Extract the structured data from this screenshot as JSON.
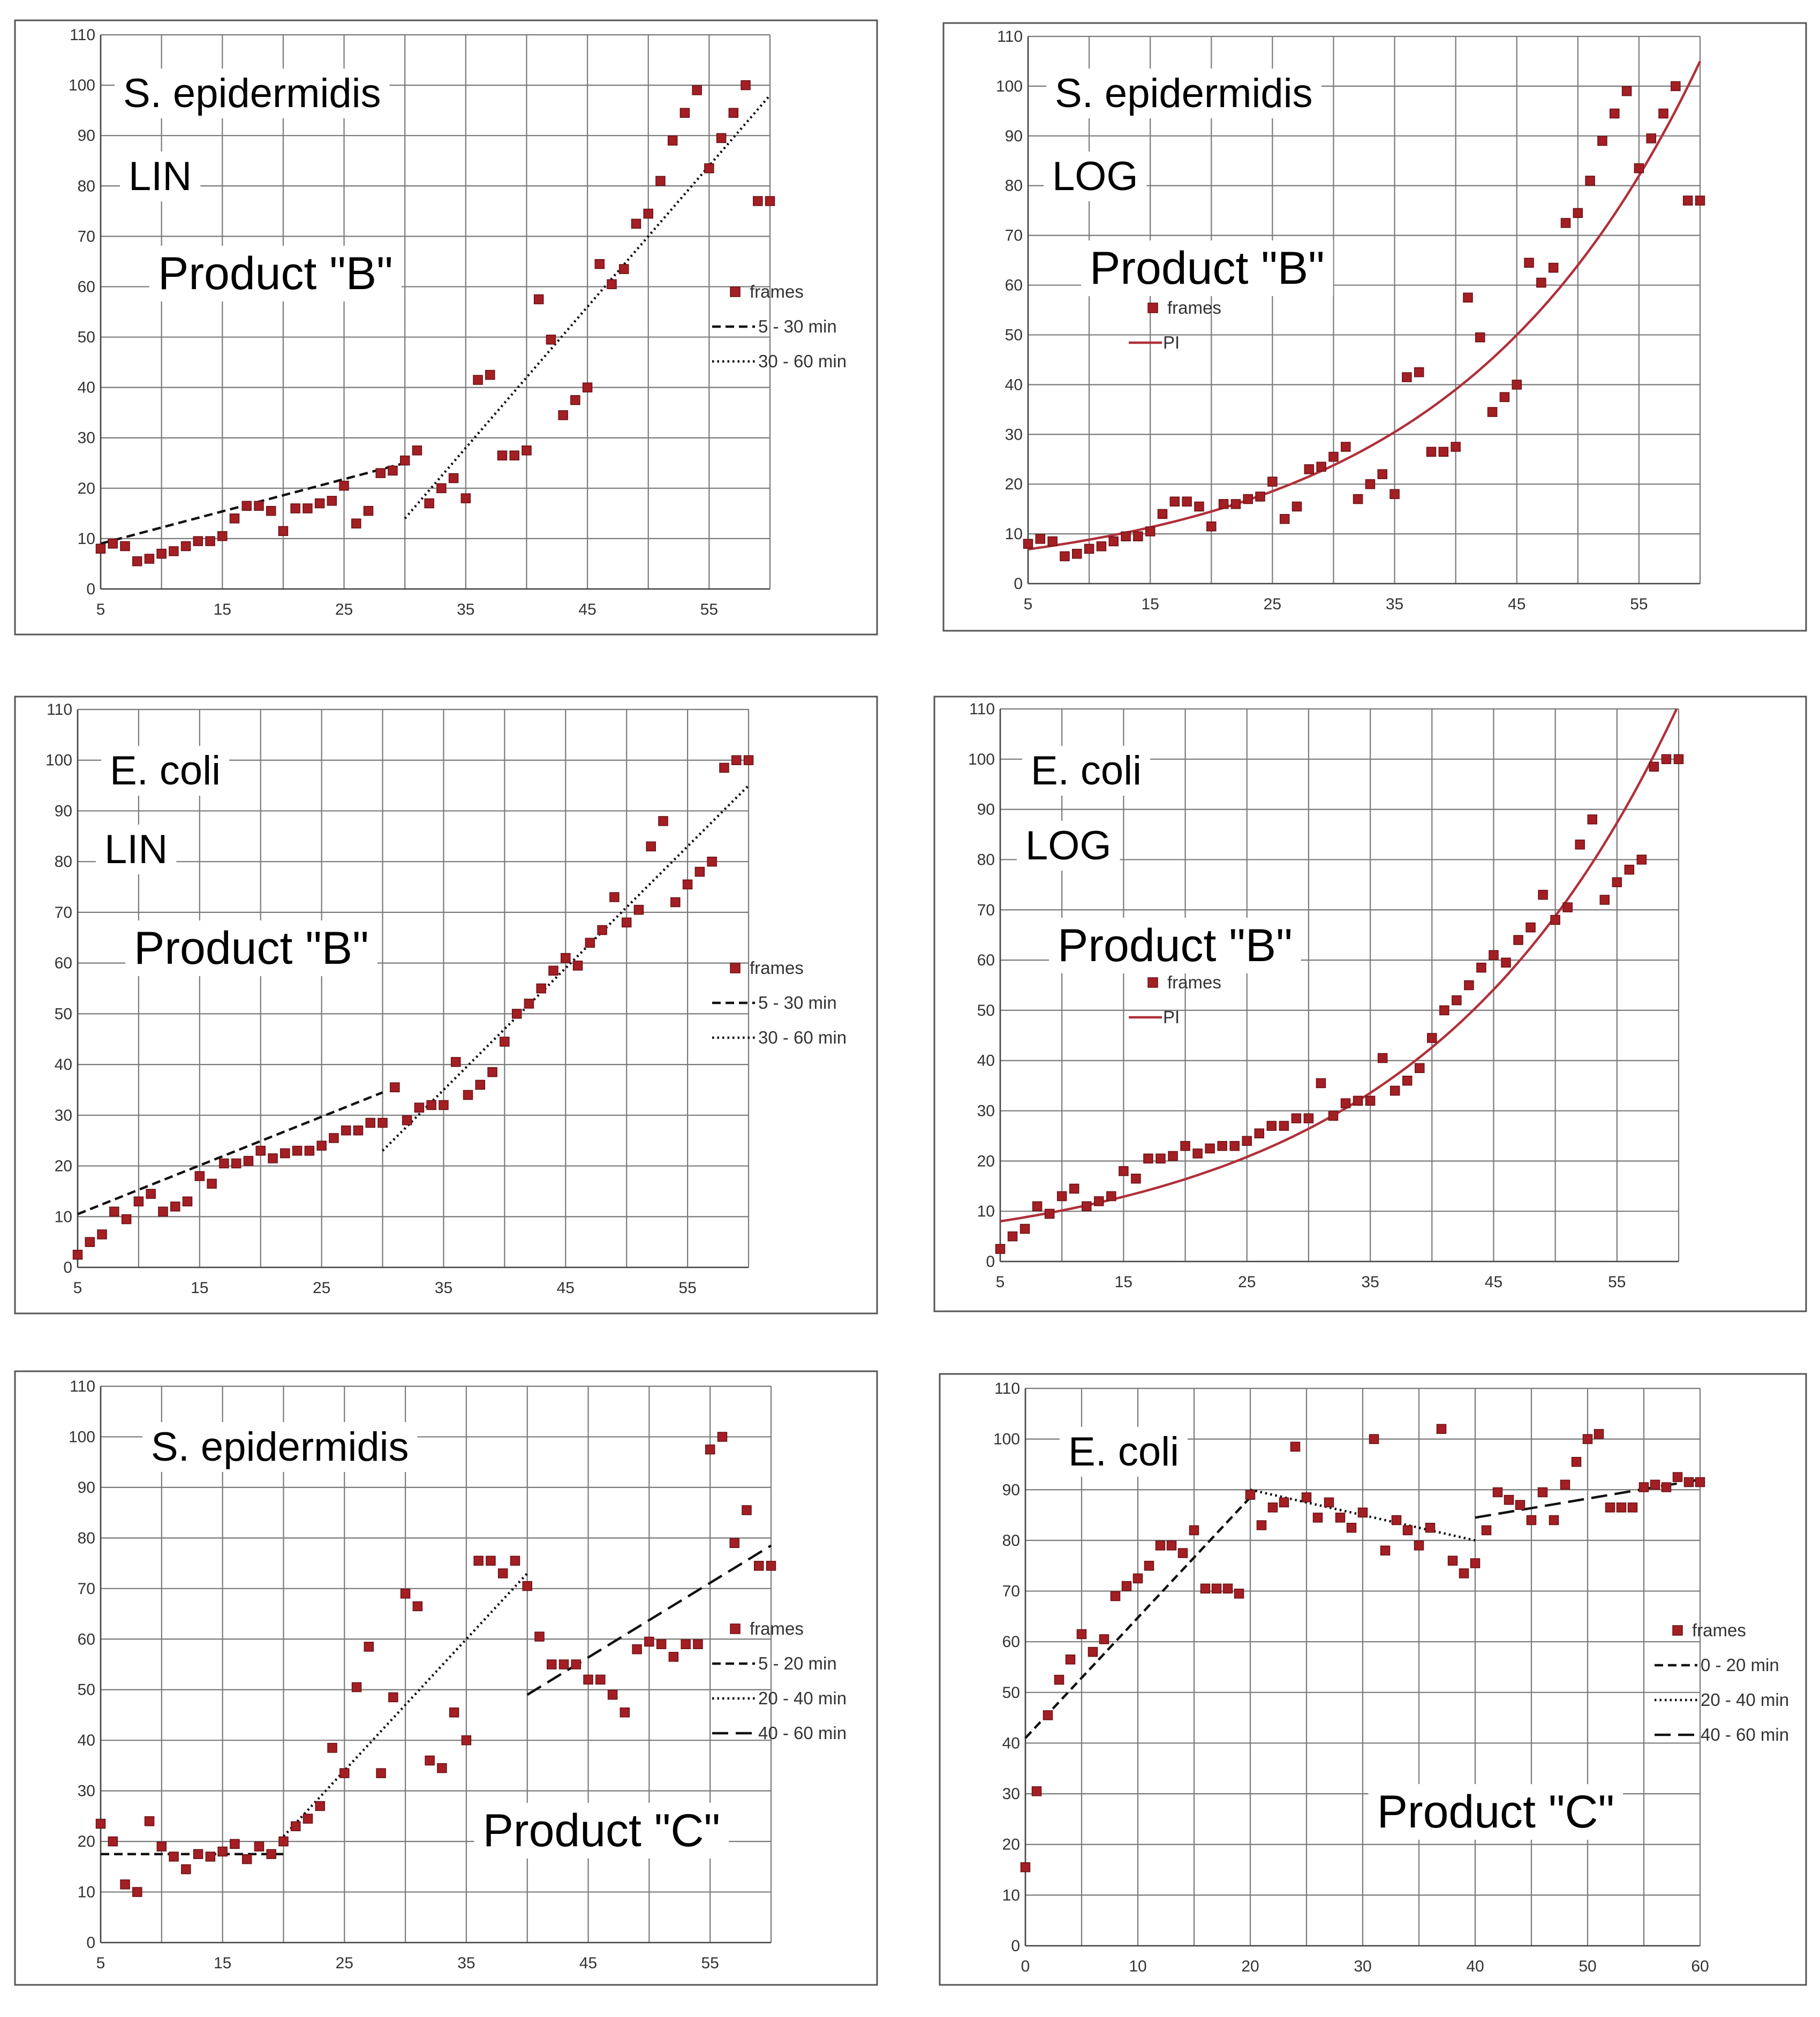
{
  "figure": {
    "panels": [
      {
        "id": "a",
        "title": "S. epidermidis",
        "mode": "LIN",
        "product": "Product \"B\"",
        "legend": [
          {
            "label": "frames",
            "style": "marker"
          },
          {
            "label": "5 - 30 min",
            "style": "dash"
          },
          {
            "label": "30 - 60 min",
            "style": "dot"
          }
        ]
      },
      {
        "id": "b",
        "title": "S. epidermidis",
        "mode": "LOG",
        "product": "Product \"B\"",
        "legend": [
          {
            "label": "frames",
            "style": "marker"
          },
          {
            "label": "PI",
            "style": "line"
          }
        ]
      },
      {
        "id": "c",
        "title": "E. coli",
        "mode": "LIN",
        "product": "Product \"B\"",
        "legend": [
          {
            "label": "frames",
            "style": "marker"
          },
          {
            "label": "5 - 30 min",
            "style": "dash"
          },
          {
            "label": "30 - 60 min",
            "style": "dot"
          }
        ]
      },
      {
        "id": "d",
        "title": "E. coli",
        "mode": "LOG",
        "product": "Product \"B\"",
        "legend": [
          {
            "label": "frames",
            "style": "marker"
          },
          {
            "label": "PI",
            "style": "line"
          }
        ]
      },
      {
        "id": "e",
        "title": "S. epidermidis",
        "mode": "",
        "product": "Product \"C\"",
        "legend": [
          {
            "label": "frames",
            "style": "marker"
          },
          {
            "label": "5 - 20 min",
            "style": "dash"
          },
          {
            "label": "20 - 40 min",
            "style": "dot"
          },
          {
            "label": "40 - 60 min",
            "style": "longdash"
          }
        ]
      },
      {
        "id": "f",
        "title": "E. coli",
        "mode": "",
        "product": "Product \"C\"",
        "legend": [
          {
            "label": "frames",
            "style": "marker"
          },
          {
            "label": "0 - 20 min",
            "style": "dash"
          },
          {
            "label": "20 - 40 min",
            "style": "dot"
          },
          {
            "label": "40 - 60 min",
            "style": "longdash"
          }
        ]
      }
    ]
  },
  "colors": {
    "marker": "#a31f24",
    "marker_edge": "#6a1015",
    "pi_line": "#b0303a",
    "fit_line": "#111111",
    "grid": "#7a7a7a",
    "frame": "#555555"
  },
  "chart_data": [
    {
      "panel": "a",
      "type": "scatter",
      "x": [
        5,
        6,
        7,
        8,
        9,
        10,
        11,
        12,
        13,
        14,
        15,
        16,
        17,
        18,
        19,
        20,
        21,
        22,
        23,
        24,
        25,
        26,
        27,
        28,
        29,
        30,
        31,
        32,
        33,
        34,
        35,
        36,
        37,
        38,
        39,
        40,
        41,
        42,
        43,
        44,
        45,
        46,
        47,
        48,
        49,
        50,
        51,
        52,
        53,
        54,
        55,
        56,
        57,
        58,
        59,
        60
      ],
      "values": [
        8,
        9,
        8.5,
        5.5,
        6,
        7,
        7.5,
        8.5,
        9.5,
        9.5,
        10.5,
        14,
        16.5,
        16.5,
        15.5,
        11.5,
        16,
        16,
        17,
        17.5,
        20.5,
        13,
        15.5,
        23,
        23.5,
        25.5,
        27.5,
        17,
        20,
        22,
        18,
        41.5,
        42.5,
        26.5,
        26.5,
        27.5,
        57.5,
        49.5,
        34.5,
        37.5,
        40,
        64.5,
        60.5,
        63.5,
        72.5,
        74.5,
        81,
        89,
        94.5,
        99,
        83.5,
        89.5,
        94.5,
        100,
        77,
        77
      ],
      "fits": [
        {
          "label": "5 - 30 min",
          "style": "dash",
          "from": [
            5,
            9
          ],
          "to": [
            30,
            25
          ]
        },
        {
          "label": "30 - 60 min",
          "style": "dot",
          "from": [
            30,
            14
          ],
          "to": [
            60,
            98
          ]
        }
      ],
      "xlim": [
        5,
        60
      ],
      "ylim": [
        0,
        110
      ],
      "xticks": [
        5,
        15,
        25,
        35,
        45,
        55
      ],
      "yticks": [
        0,
        10,
        20,
        30,
        40,
        50,
        60,
        70,
        80,
        90,
        100,
        110
      ]
    },
    {
      "panel": "b",
      "type": "scatter",
      "x": [
        5,
        6,
        7,
        8,
        9,
        10,
        11,
        12,
        13,
        14,
        15,
        16,
        17,
        18,
        19,
        20,
        21,
        22,
        23,
        24,
        25,
        26,
        27,
        28,
        29,
        30,
        31,
        32,
        33,
        34,
        35,
        36,
        37,
        38,
        39,
        40,
        41,
        42,
        43,
        44,
        45,
        46,
        47,
        48,
        49,
        50,
        51,
        52,
        53,
        54,
        55,
        56,
        57,
        58,
        59,
        60
      ],
      "values": [
        8,
        9,
        8.5,
        5.5,
        6,
        7,
        7.5,
        8.5,
        9.5,
        9.5,
        10.5,
        14,
        16.5,
        16.5,
        15.5,
        11.5,
        16,
        16,
        17,
        17.5,
        20.5,
        13,
        15.5,
        23,
        23.5,
        25.5,
        27.5,
        17,
        20,
        22,
        18,
        41.5,
        42.5,
        26.5,
        26.5,
        27.5,
        57.5,
        49.5,
        34.5,
        37.5,
        40,
        64.5,
        60.5,
        63.5,
        72.5,
        74.5,
        81,
        89,
        94.5,
        99,
        83.5,
        89.5,
        94.5,
        100,
        77,
        77
      ],
      "curve": {
        "label": "PI",
        "model": "exponential",
        "a": 6.9,
        "k": 0.0495,
        "x0": 5
      },
      "xlim": [
        5,
        60
      ],
      "ylim": [
        0,
        110
      ],
      "xticks": [
        5,
        15,
        25,
        35,
        45,
        55
      ],
      "yticks": [
        0,
        10,
        20,
        30,
        40,
        50,
        60,
        70,
        80,
        90,
        100,
        110
      ]
    },
    {
      "panel": "c",
      "type": "scatter",
      "x": [
        5,
        6,
        7,
        8,
        9,
        10,
        11,
        12,
        13,
        14,
        15,
        16,
        17,
        18,
        19,
        20,
        21,
        22,
        23,
        24,
        25,
        26,
        27,
        28,
        29,
        30,
        31,
        32,
        33,
        34,
        35,
        36,
        37,
        38,
        39,
        40,
        41,
        42,
        43,
        44,
        45,
        46,
        47,
        48,
        49,
        50,
        51,
        52,
        53,
        54,
        55,
        56,
        57,
        58,
        59,
        60
      ],
      "values": [
        2.5,
        5,
        6.5,
        11,
        9.5,
        13,
        14.5,
        11,
        12,
        13,
        18,
        16.5,
        20.5,
        20.5,
        21,
        23,
        21.5,
        22.5,
        23,
        23,
        24,
        25.5,
        27,
        27,
        28.5,
        28.5,
        35.5,
        29,
        31.5,
        32,
        32,
        40.5,
        34,
        36,
        38.5,
        44.5,
        50,
        52,
        55,
        58.5,
        61,
        59.5,
        64,
        66.5,
        73,
        68,
        70.5,
        83,
        88,
        72,
        75.5,
        78,
        80,
        98.5,
        100,
        100
      ],
      "fits": [
        {
          "label": "5 - 30 min",
          "style": "dash",
          "from": [
            5,
            10.5
          ],
          "to": [
            30,
            34.5
          ]
        },
        {
          "label": "30 - 60 min",
          "style": "dot",
          "from": [
            30,
            23
          ],
          "to": [
            60,
            95
          ]
        }
      ],
      "xlim": [
        5,
        60
      ],
      "ylim": [
        0,
        110
      ],
      "xticks": [
        5,
        15,
        25,
        35,
        45,
        55
      ],
      "yticks": [
        0,
        10,
        20,
        30,
        40,
        50,
        60,
        70,
        80,
        90,
        100,
        110
      ]
    },
    {
      "panel": "d",
      "type": "scatter",
      "x": [
        5,
        6,
        7,
        8,
        9,
        10,
        11,
        12,
        13,
        14,
        15,
        16,
        17,
        18,
        19,
        20,
        21,
        22,
        23,
        24,
        25,
        26,
        27,
        28,
        29,
        30,
        31,
        32,
        33,
        34,
        35,
        36,
        37,
        38,
        39,
        40,
        41,
        42,
        43,
        44,
        45,
        46,
        47,
        48,
        49,
        50,
        51,
        52,
        53,
        54,
        55,
        56,
        57,
        58,
        59,
        60
      ],
      "values": [
        2.5,
        5,
        6.5,
        11,
        9.5,
        13,
        14.5,
        11,
        12,
        13,
        18,
        16.5,
        20.5,
        20.5,
        21,
        23,
        21.5,
        22.5,
        23,
        23,
        24,
        25.5,
        27,
        27,
        28.5,
        28.5,
        35.5,
        29,
        31.5,
        32,
        32,
        40.5,
        34,
        36,
        38.5,
        44.5,
        50,
        52,
        55,
        58.5,
        61,
        59.5,
        64,
        66.5,
        73,
        68,
        70.5,
        83,
        88,
        72,
        75.5,
        78,
        80,
        98.5,
        100,
        100
      ],
      "curve": {
        "label": "PI",
        "model": "exponential",
        "a": 8.0,
        "k": 0.0478,
        "x0": 5
      },
      "xlim": [
        5,
        60
      ],
      "ylim": [
        0,
        110
      ],
      "xticks": [
        5,
        15,
        25,
        35,
        45,
        55
      ],
      "yticks": [
        0,
        10,
        20,
        30,
        40,
        50,
        60,
        70,
        80,
        90,
        100,
        110
      ]
    },
    {
      "panel": "e",
      "type": "scatter",
      "x": [
        5,
        6,
        7,
        8,
        9,
        10,
        11,
        12,
        13,
        14,
        15,
        16,
        17,
        18,
        19,
        20,
        21,
        22,
        23,
        24,
        25,
        26,
        27,
        28,
        29,
        30,
        31,
        32,
        33,
        34,
        35,
        36,
        37,
        38,
        39,
        40,
        41,
        42,
        43,
        44,
        45,
        46,
        47,
        48,
        49,
        50,
        51,
        52,
        53,
        54,
        55,
        56,
        57,
        58,
        59,
        60
      ],
      "values": [
        23.5,
        20,
        11.5,
        10,
        24,
        19,
        17,
        14.5,
        17.5,
        17,
        18,
        19.5,
        16.5,
        19,
        17.5,
        20,
        23,
        24.5,
        27,
        38.5,
        33.5,
        50.5,
        58.5,
        33.5,
        48.5,
        69,
        66.5,
        36,
        34.5,
        45.5,
        40,
        75.5,
        75.5,
        73,
        75.5,
        70.5,
        60.5,
        55,
        55,
        55,
        52,
        52,
        49,
        45.5,
        58,
        59.5,
        59,
        56.5,
        59,
        59,
        97.5,
        100,
        79,
        85.5,
        74.5,
        74.5
      ],
      "fits": [
        {
          "label": "5 - 20 min",
          "style": "dash",
          "from": [
            5,
            17.5
          ],
          "to": [
            20,
            17.5
          ]
        },
        {
          "label": "20 - 40 min",
          "style": "dot",
          "from": [
            20,
            21
          ],
          "to": [
            40,
            73
          ]
        },
        {
          "label": "40 - 60 min",
          "style": "longdash",
          "from": [
            40,
            49
          ],
          "to": [
            60,
            78.5
          ]
        }
      ],
      "xlim": [
        5,
        60
      ],
      "ylim": [
        0,
        110
      ],
      "xticks": [
        5,
        15,
        25,
        35,
        45,
        55
      ],
      "yticks": [
        0,
        10,
        20,
        30,
        40,
        50,
        60,
        70,
        80,
        90,
        100,
        110
      ]
    },
    {
      "panel": "f",
      "type": "scatter",
      "x": [
        0,
        1,
        2,
        3,
        4,
        5,
        6,
        7,
        8,
        9,
        10,
        11,
        12,
        13,
        14,
        15,
        16,
        17,
        18,
        19,
        20,
        21,
        22,
        23,
        24,
        25,
        26,
        27,
        28,
        29,
        30,
        31,
        32,
        33,
        34,
        35,
        36,
        37,
        38,
        39,
        40,
        41,
        42,
        43,
        44,
        45,
        46,
        47,
        48,
        49,
        50,
        51,
        52,
        53,
        54,
        55,
        56,
        57,
        58,
        59,
        60
      ],
      "values": [
        15.5,
        30.5,
        45.5,
        52.5,
        56.5,
        61.5,
        58,
        60.5,
        69,
        71,
        72.5,
        75,
        79,
        79,
        77.5,
        82,
        70.5,
        70.5,
        70.5,
        69.5,
        89,
        83,
        86.5,
        87.5,
        98.5,
        88.5,
        84.5,
        87.5,
        84.5,
        82.5,
        85.5,
        100,
        78,
        84,
        82,
        79,
        82.5,
        102,
        76,
        73.5,
        75.5,
        82,
        89.5,
        88,
        87,
        84,
        89.5,
        84,
        91,
        95.5,
        100,
        101,
        86.5,
        86.5,
        86.5,
        90.5,
        91,
        90.5,
        92.5,
        91.5,
        91.5
      ],
      "fits": [
        {
          "label": "0 - 20 min",
          "style": "dash",
          "from": [
            0,
            41
          ],
          "to": [
            20,
            88.5
          ]
        },
        {
          "label": "20 - 40 min",
          "style": "dot",
          "from": [
            20,
            90
          ],
          "to": [
            40,
            80
          ]
        },
        {
          "label": "40 - 60 min",
          "style": "longdash",
          "from": [
            40,
            84.5
          ],
          "to": [
            60,
            92
          ]
        }
      ],
      "xlim": [
        0,
        60
      ],
      "ylim": [
        0,
        110
      ],
      "xticks": [
        0,
        10,
        20,
        30,
        40,
        50,
        60
      ],
      "yticks": [
        0,
        10,
        20,
        30,
        40,
        50,
        60,
        70,
        80,
        90,
        100,
        110
      ]
    }
  ]
}
